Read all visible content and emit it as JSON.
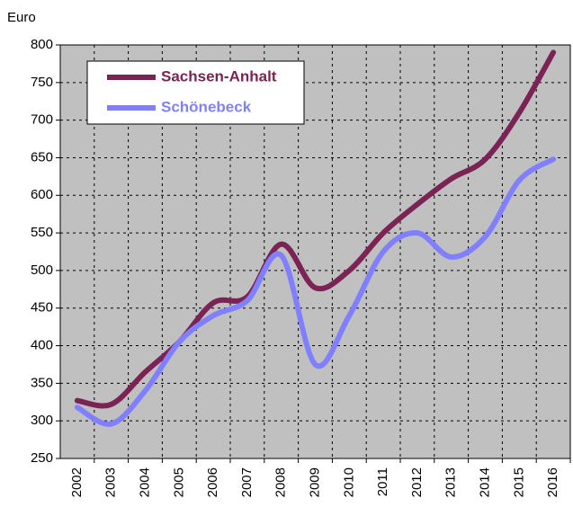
{
  "chart_data": {
    "type": "line",
    "y_label": "Euro",
    "categories": [
      "2002",
      "2003",
      "2004",
      "2005",
      "2006",
      "2007",
      "2008",
      "2009",
      "2010",
      "2011",
      "2012",
      "2013",
      "2014",
      "2015",
      "2016"
    ],
    "series": [
      {
        "name": "Sachsen-Anhalt",
        "color": "#7b2354",
        "values": [
          327,
          322,
          365,
          405,
          457,
          465,
          535,
          477,
          500,
          550,
          588,
          622,
          648,
          710,
          790
        ]
      },
      {
        "name": "Schönebeck",
        "color": "#8080ff",
        "values": [
          318,
          296,
          340,
          405,
          440,
          460,
          520,
          375,
          440,
          525,
          550,
          518,
          545,
          620,
          648
        ]
      }
    ],
    "ylim": [
      250,
      800
    ],
    "yticks": [
      250,
      300,
      350,
      400,
      450,
      500,
      550,
      600,
      650,
      700,
      750,
      800
    ],
    "grid": true,
    "legend": "upper left",
    "background": "#c0c0c0"
  }
}
